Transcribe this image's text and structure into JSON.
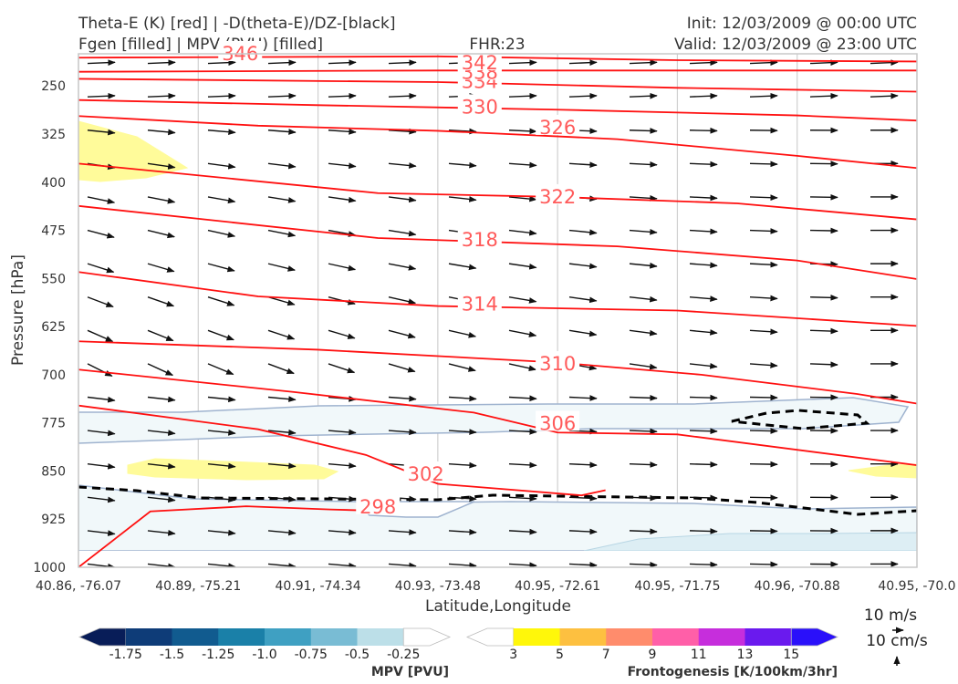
{
  "header": {
    "title_left_1": "Theta-E (K) [red] | -D(theta-E)/DZ-[black]",
    "title_left_2": "Fgen [filled] | MPV (PVU) [filled]",
    "title_center": "FHR:23",
    "title_right_1": "Init: 12/03/2009 @ 00:00 UTC",
    "title_right_2": "Valid: 12/03/2009 @ 23:00 UTC"
  },
  "chart_data": {
    "type": "cross-section",
    "xlabel": "Latitude,Longitude",
    "ylabel": "Pressure [hPa]",
    "ylim": [
      1000,
      200
    ],
    "y_scale": "linear, inverted",
    "x_ticks": [
      "40.86, -76.07",
      "40.89, -75.21",
      "40.91, -74.34",
      "40.93, -73.48",
      "40.95, -72.61",
      "40.95, -71.75",
      "40.96, -70.88",
      "40.95, -70.0"
    ],
    "y_ticks": [
      250,
      325,
      400,
      475,
      550,
      625,
      700,
      775,
      850,
      925,
      1000
    ],
    "grid": true,
    "theta_e_contours": [
      {
        "label": "298",
        "x": [
          0,
          0.6,
          1.4,
          2.1,
          2.5
        ],
        "y": [
          1000,
          913,
          905,
          910,
          912
        ]
      },
      {
        "label": "302",
        "x": [
          0,
          1.5,
          2.4,
          3.0,
          4.2,
          4.4
        ],
        "y": [
          748,
          785,
          825,
          870,
          888,
          880
        ]
      },
      {
        "label": "306",
        "x": [
          0,
          1.8,
          3.3,
          4.0,
          5.0,
          7.0
        ],
        "y": [
          692,
          727,
          759,
          790,
          793,
          841
        ]
      },
      {
        "label": "310",
        "x": [
          0,
          2.0,
          4.0,
          5.2,
          6.5,
          7.0
        ],
        "y": [
          648,
          661,
          681,
          700,
          730,
          745
        ]
      },
      {
        "label": "314",
        "x": [
          0,
          1.5,
          3.0,
          5.0,
          7.0
        ],
        "y": [
          540,
          578,
          593,
          600,
          624
        ]
      },
      {
        "label": "318",
        "x": [
          0,
          2.5,
          4.5,
          6.0,
          7.0
        ],
        "y": [
          437,
          487,
          500,
          522,
          551
        ]
      },
      {
        "label": "322",
        "x": [
          0,
          2.5,
          4.0,
          5.5,
          7.0
        ],
        "y": [
          371,
          417,
          423,
          433,
          458
        ]
      },
      {
        "label": "326",
        "x": [
          0,
          1.5,
          3.0,
          4.5,
          6.0,
          7.0
        ],
        "y": [
          297,
          312,
          320,
          333,
          359,
          378
        ]
      },
      {
        "label": "330",
        "x": [
          0,
          2.0,
          4.0,
          6.0,
          7.0
        ],
        "y": [
          272,
          280,
          287,
          296,
          304
        ]
      },
      {
        "label": "334",
        "x": [
          0,
          3.0,
          5.0,
          7.0
        ],
        "y": [
          239,
          244,
          253,
          259
        ]
      },
      {
        "label": "338",
        "x": [
          0,
          3.0,
          5.0,
          7.0
        ],
        "y": [
          228,
          226,
          226,
          226
        ]
      },
      {
        "label": "342",
        "x": [
          0,
          3.0,
          5.0,
          7.0
        ],
        "y": [
          206,
          204,
          210,
          212
        ]
      },
      {
        "label": "346",
        "x": [
          0,
          2.0,
          4.0
        ],
        "y": [
          195,
          197,
          199
        ]
      }
    ],
    "mpv_colorbar": {
      "title": "MPV [PVU]",
      "levels": [
        "-1.75",
        "-1.5",
        "-1.25",
        "-1.0",
        "-0.75",
        "-0.5",
        "-0.25"
      ],
      "colors": [
        "#081d58",
        "#0e3c78",
        "#115b8f",
        "#1a80a8",
        "#3fa0c2",
        "#79bcd4",
        "#bcdfe8",
        "#ffffff"
      ]
    },
    "fgen_colorbar": {
      "title": "Frontogenesis [K/100km/3hr]",
      "levels": [
        "3",
        "5",
        "7",
        "9",
        "11",
        "13",
        "15"
      ],
      "colors": [
        "#ffffff",
        "#fff70a",
        "#fdc040",
        "#ff8c6c",
        "#ff5fa8",
        "#c62edc",
        "#6a1aee",
        "#2a10fa"
      ]
    },
    "quiver_key": {
      "label_1": "10 m/s",
      "label_2": "10 cm/s"
    }
  }
}
